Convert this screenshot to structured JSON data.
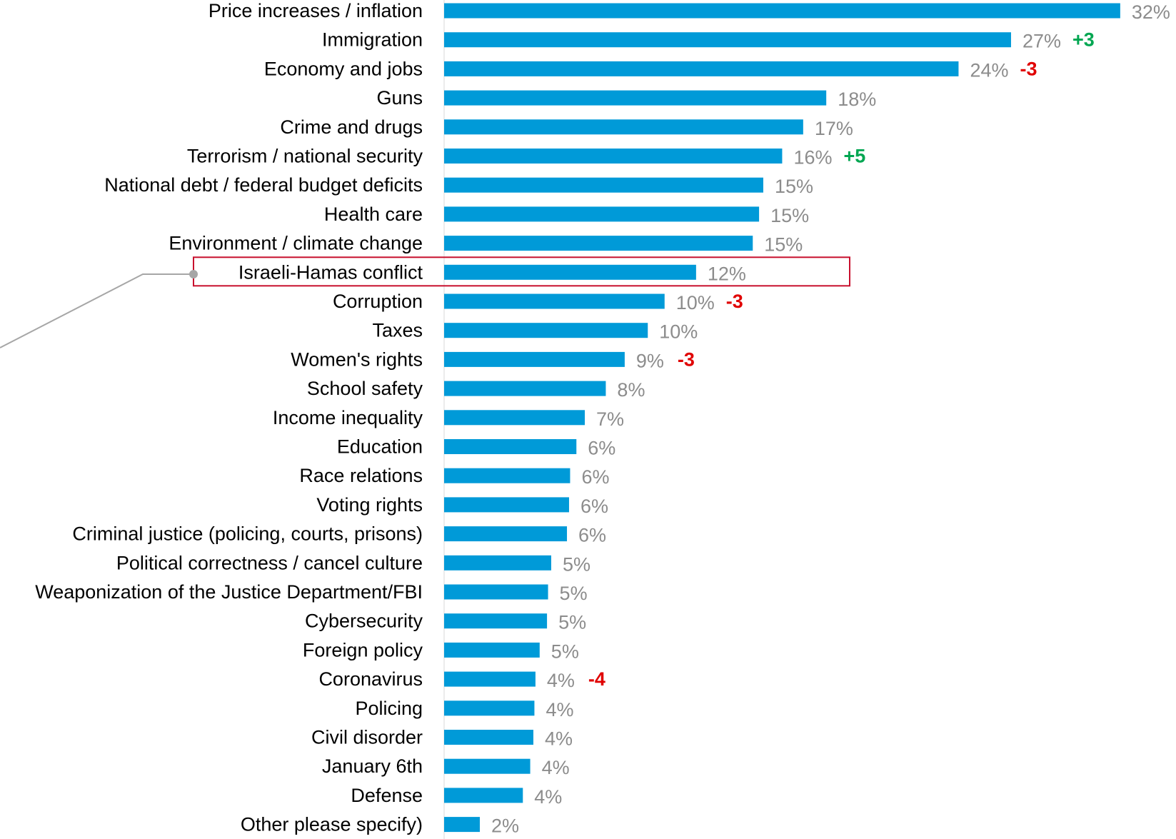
{
  "chart_data": {
    "type": "bar",
    "orientation": "horizontal",
    "title": "",
    "xlabel": "",
    "ylabel": "",
    "xlim": [
      0,
      32
    ],
    "grid": false,
    "legend": "none",
    "colors": {
      "bar": "#009ad8",
      "value_label": "#8c8c8c",
      "increase": "#00a651",
      "decrease": "#e00000",
      "highlight_box": "#c8102e",
      "callout_line": "#a6a6a6",
      "axis_line": "#d9d9d9"
    },
    "highlighted_category": "Israeli-Hamas conflict",
    "categories": [
      "Price increases / inflation",
      "Immigration",
      "Economy and jobs",
      "Guns",
      "Crime and drugs",
      "Terrorism / national security",
      "National debt / federal budget deficits",
      "Health care",
      "Environment / climate change",
      "Israeli-Hamas conflict",
      "Corruption",
      "Taxes",
      "Women's rights",
      "School safety",
      "Income inequality",
      "Education",
      "Race relations",
      "Voting rights",
      "Criminal justice (policing, courts, prisons)",
      "Political correctness / cancel culture",
      "Weaponization of the Justice Department/FBI",
      "Cybersecurity",
      "Foreign policy",
      "Coronavirus",
      "Policing",
      "Civil disorder",
      "January 6th",
      "Defense",
      "Other please specify)"
    ],
    "values": [
      32.2,
      27,
      24.5,
      18.2,
      17.1,
      16.1,
      15.2,
      15,
      14.7,
      12,
      10.5,
      9.7,
      8.6,
      7.7,
      6.7,
      6.3,
      6,
      5.95,
      5.85,
      5.1,
      4.95,
      4.9,
      4.55,
      4.35,
      4.3,
      4.25,
      4.1,
      3.75,
      1.7
    ],
    "value_labels": [
      "32%",
      "27%",
      "24%",
      "18%",
      "17%",
      "16%",
      "15%",
      "15%",
      "15%",
      "12%",
      "10%",
      "10%",
      "9%",
      "8%",
      "7%",
      "6%",
      "6%",
      "6%",
      "6%",
      "5%",
      "5%",
      "5%",
      "5%",
      "4%",
      "4%",
      "4%",
      "4%",
      "4%",
      "2%"
    ],
    "changes": [
      "",
      "+3",
      "-3",
      "",
      "",
      "+5",
      "",
      "",
      "",
      "",
      "-3",
      "",
      "-3",
      "",
      "",
      "",
      "",
      "",
      "",
      "",
      "",
      "",
      "",
      "-4",
      "",
      "",
      "",
      "",
      ""
    ]
  }
}
